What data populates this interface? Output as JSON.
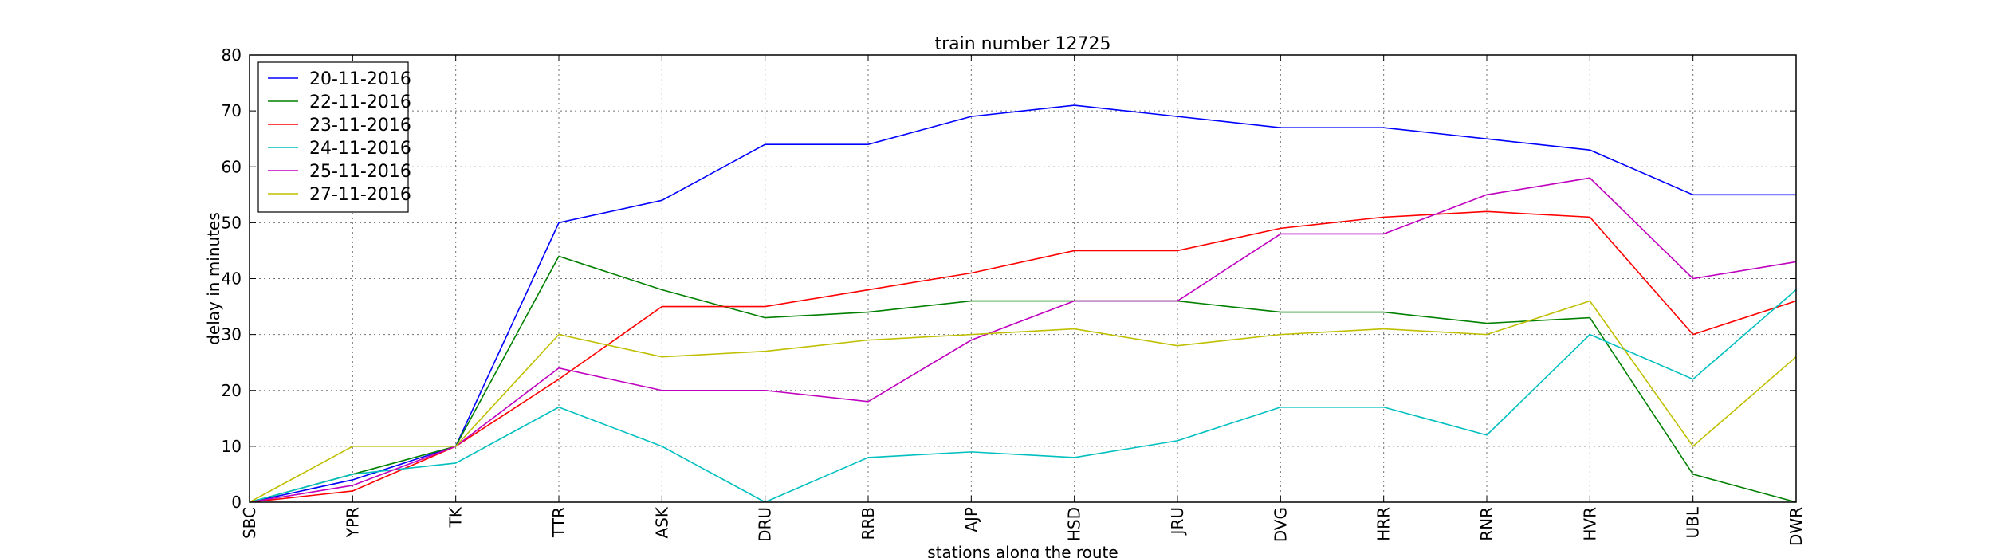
{
  "chart_data": {
    "type": "line",
    "title": "train number 12725",
    "xlabel": "stations along the route",
    "ylabel": "delay in minutes",
    "categories": [
      "SBC",
      "YPR",
      "TK",
      "TTR",
      "ASK",
      "DRU",
      "RRB",
      "AJP",
      "HSD",
      "JRU",
      "DVG",
      "HRR",
      "RNR",
      "HVR",
      "UBL",
      "DWR"
    ],
    "ylim": [
      0,
      80
    ],
    "yticks": [
      0,
      10,
      20,
      30,
      40,
      50,
      60,
      70,
      80
    ],
    "grid": true,
    "legend_position": "top-left",
    "series": [
      {
        "name": "20-11-2016",
        "color": "#0000ff",
        "values": [
          0,
          4,
          10,
          50,
          54,
          64,
          64,
          69,
          71,
          69,
          67,
          67,
          65,
          63,
          55,
          55
        ]
      },
      {
        "name": "22-11-2016",
        "color": "#008000",
        "values": [
          0,
          5,
          10,
          44,
          38,
          33,
          34,
          36,
          36,
          36,
          34,
          34,
          32,
          33,
          5,
          0
        ]
      },
      {
        "name": "23-11-2016",
        "color": "#ff0000",
        "values": [
          0,
          2,
          10,
          22,
          35,
          35,
          38,
          41,
          45,
          45,
          49,
          51,
          52,
          51,
          30,
          36
        ]
      },
      {
        "name": "24-11-2016",
        "color": "#00bfbf",
        "values": [
          0,
          5,
          7,
          17,
          10,
          0,
          8,
          9,
          8,
          11,
          17,
          17,
          12,
          30,
          22,
          38
        ]
      },
      {
        "name": "25-11-2016",
        "color": "#bf00bf",
        "values": [
          0,
          3,
          10,
          24,
          20,
          20,
          18,
          29,
          36,
          36,
          48,
          48,
          55,
          58,
          40,
          43
        ]
      },
      {
        "name": "27-11-2016",
        "color": "#bfbf00",
        "values": [
          0,
          10,
          10,
          30,
          26,
          27,
          29,
          30,
          31,
          28,
          30,
          31,
          30,
          36,
          10,
          26
        ]
      }
    ]
  }
}
